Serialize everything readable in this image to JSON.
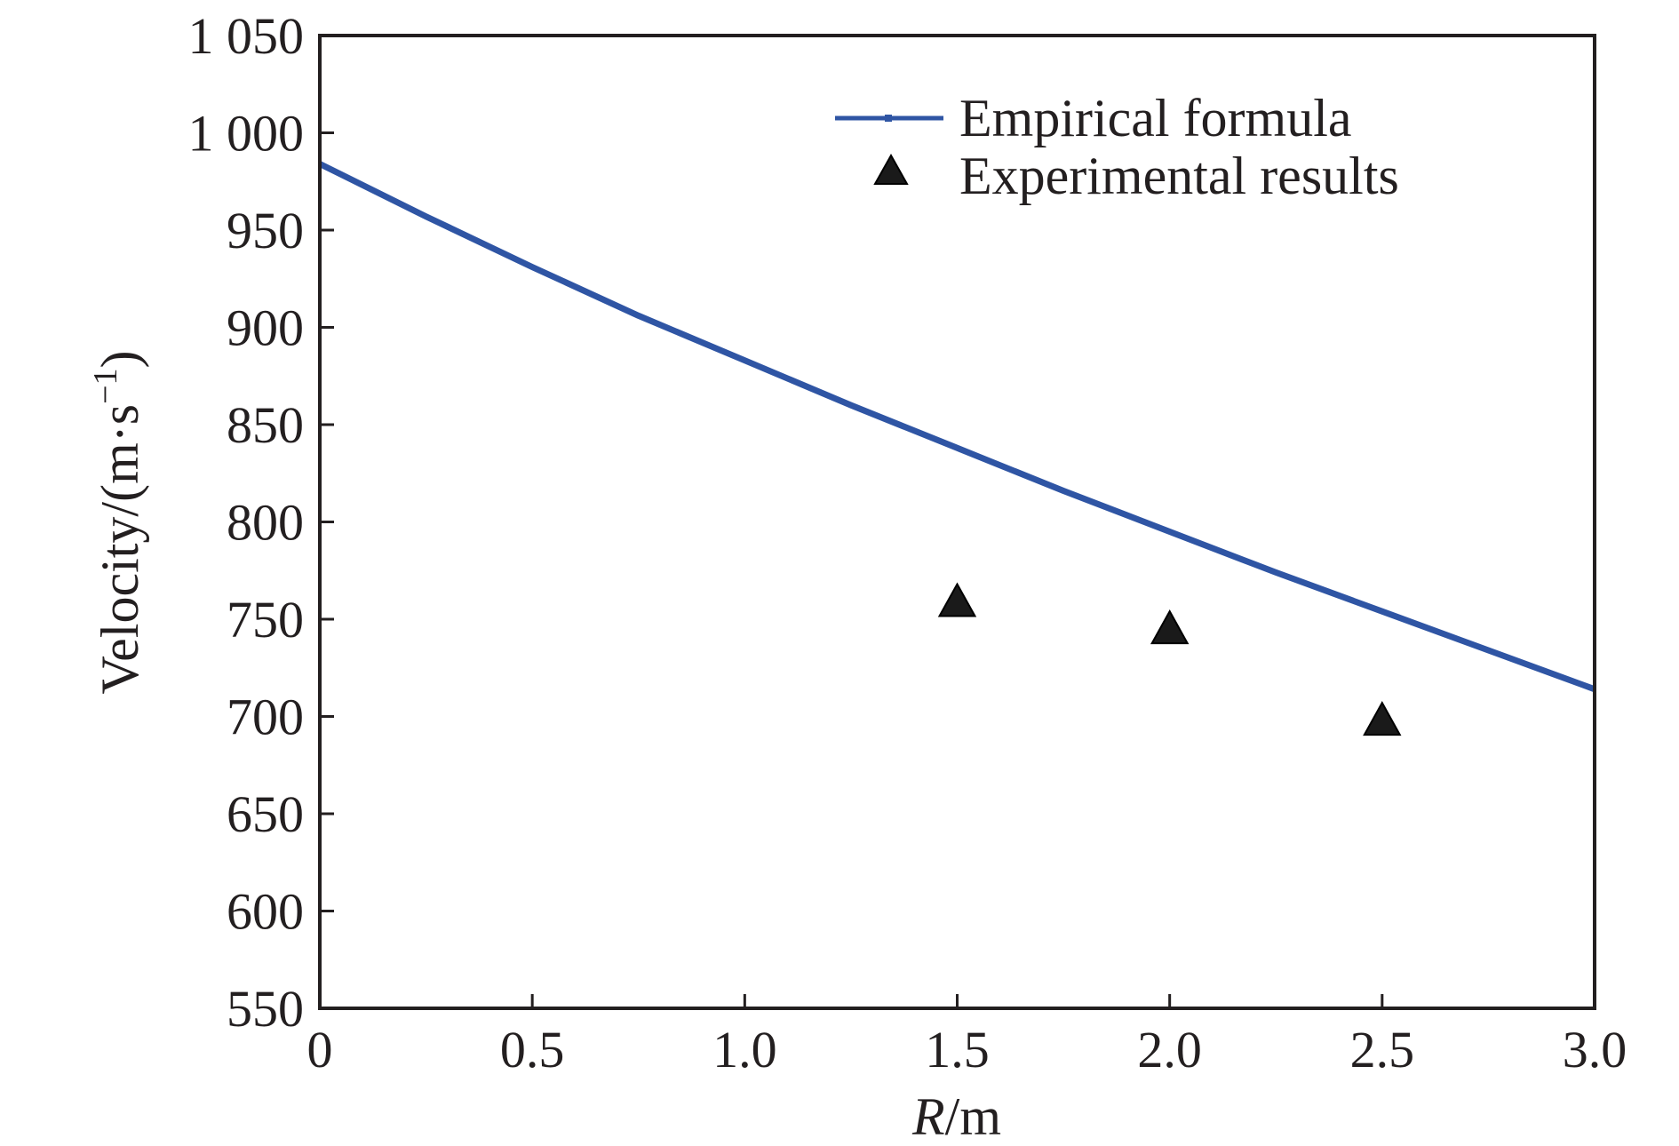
{
  "chart_data": {
    "type": "line",
    "title": "",
    "xlabel": {
      "italic": "R",
      "rest": "/m"
    },
    "ylabel": {
      "main": "Velocity/(m·s",
      "sup": "−1",
      "close": ")"
    },
    "xlim": [
      0,
      3.0
    ],
    "ylim": [
      550,
      1050
    ],
    "x_ticks": [
      {
        "value": 0,
        "label": "0"
      },
      {
        "value": 0.5,
        "label": "0.5"
      },
      {
        "value": 1.0,
        "label": "1.0"
      },
      {
        "value": 1.5,
        "label": "1.5"
      },
      {
        "value": 2.0,
        "label": "2.0"
      },
      {
        "value": 2.5,
        "label": "2.5"
      },
      {
        "value": 3.0,
        "label": "3.0"
      }
    ],
    "y_ticks": [
      {
        "value": 550,
        "label": "550"
      },
      {
        "value": 600,
        "label": "600"
      },
      {
        "value": 650,
        "label": "650"
      },
      {
        "value": 700,
        "label": "700"
      },
      {
        "value": 750,
        "label": "750"
      },
      {
        "value": 800,
        "label": "800"
      },
      {
        "value": 850,
        "label": "850"
      },
      {
        "value": 900,
        "label": "900"
      },
      {
        "value": 950,
        "label": "950"
      },
      {
        "value": 1000,
        "label": "1 000"
      },
      {
        "value": 1050,
        "label": "1 050"
      }
    ],
    "grid": false,
    "legend_position": "top-right",
    "series": [
      {
        "name": "Empirical formula",
        "kind": "line",
        "color": "#2f55a4",
        "x": [
          0,
          0.25,
          0.5,
          0.75,
          1.0,
          1.25,
          1.5,
          1.75,
          2.0,
          2.25,
          2.5,
          2.75,
          3.0
        ],
        "y": [
          984,
          957,
          931,
          906,
          883,
          860,
          838,
          816,
          795,
          774,
          754,
          734,
          714
        ]
      },
      {
        "name": "Experimental results",
        "kind": "scatter",
        "marker": "triangle",
        "color": "#1a1a1a",
        "x": [
          1.5,
          2.0,
          2.5
        ],
        "y": [
          758,
          744,
          697
        ]
      }
    ]
  }
}
